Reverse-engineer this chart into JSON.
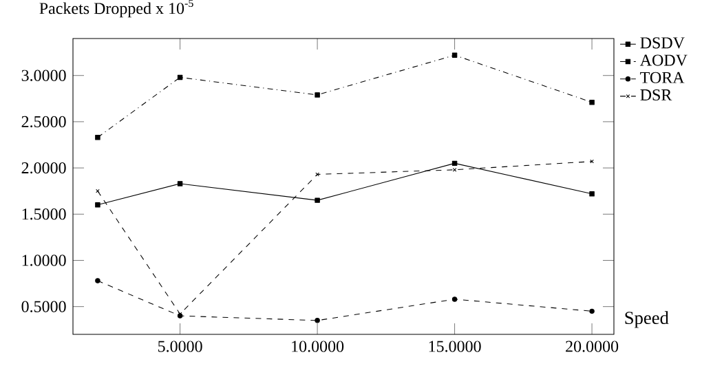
{
  "chart_data": {
    "type": "line",
    "ylabel": "Packets Dropped x 10$^{-5}$",
    "xlabel": "Speed",
    "x": [
      2,
      5,
      10,
      15,
      20
    ],
    "series": [
      {
        "name": "DSDV",
        "color": "#000000",
        "values": [
          1.6,
          1.83,
          1.65,
          2.05,
          1.72
        ],
        "marker": "square",
        "line_style": "solid"
      },
      {
        "name": "AODV",
        "color": "#000000",
        "values": [
          2.33,
          2.98,
          2.79,
          3.22,
          2.71
        ],
        "marker": "square",
        "line_style": "dotted"
      },
      {
        "name": "TORA",
        "color": "#000000",
        "values": [
          0.78,
          0.4,
          0.35,
          0.58,
          0.45
        ],
        "marker": "circle",
        "line_style": "dashed"
      },
      {
        "name": "DSR",
        "color": "#000000",
        "values": [
          1.75,
          0.42,
          1.93,
          1.98,
          2.07
        ],
        "marker": "cross",
        "line_style": "dashed"
      }
    ],
    "xlim": [
      1.1,
      20.8
    ],
    "ylim": [
      0.2,
      3.4
    ],
    "xticks": [
      {
        "value": 5,
        "label": "5.0000"
      },
      {
        "value": 10,
        "label": "10.0000"
      },
      {
        "value": 15,
        "label": "15.0000"
      },
      {
        "value": 20,
        "label": "20.0000"
      }
    ],
    "yticks": [
      {
        "value": 0.5,
        "label": "0.5000"
      },
      {
        "value": 1,
        "label": "1.0000"
      },
      {
        "value": 1.5,
        "label": "1.5000"
      },
      {
        "value": 2,
        "label": "2.0000"
      },
      {
        "value": 2.5,
        "label": "2.5000"
      },
      {
        "value": 3,
        "label": "3.0000"
      }
    ],
    "legend": "top right",
    "grid": false
  }
}
